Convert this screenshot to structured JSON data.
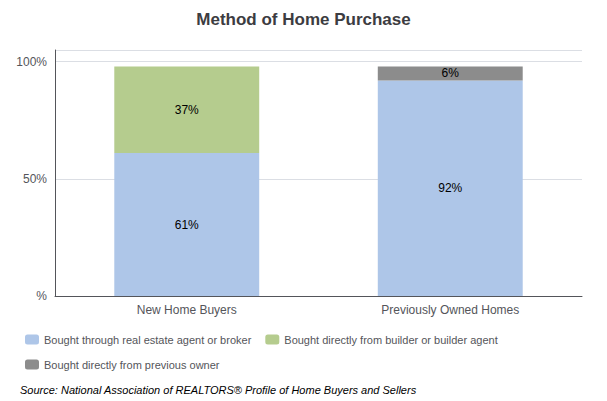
{
  "chart_data": {
    "type": "bar",
    "title": "Method of Home Purchase",
    "categories": [
      "New Home Buyers",
      "Previously Owned Homes"
    ],
    "series": [
      {
        "name": "Bought through real estate agent or broker",
        "color": "#aec6e8",
        "values": [
          61,
          92
        ],
        "value_labels": [
          "61%",
          "92%"
        ]
      },
      {
        "name": "Bought directly from builder or builder agent",
        "color": "#b5cc8e",
        "values": [
          37,
          0
        ],
        "value_labels": [
          "37%",
          null
        ]
      },
      {
        "name": "Bought directly from previous owner",
        "color": "#8c8c8c",
        "values": [
          0,
          6
        ],
        "value_labels": [
          null,
          "6%"
        ]
      }
    ],
    "stacked": true,
    "data_labels": true,
    "ylim": [
      0,
      105
    ],
    "yticks": [
      {
        "value": 0,
        "label": "%"
      },
      {
        "value": 50,
        "label": "50%"
      },
      {
        "value": 100,
        "label": "100%"
      }
    ],
    "grid": true,
    "legend": "lower left",
    "annotations": [
      "Source: National Association of REALTORS® Profile of Home Buyers and Sellers"
    ]
  }
}
